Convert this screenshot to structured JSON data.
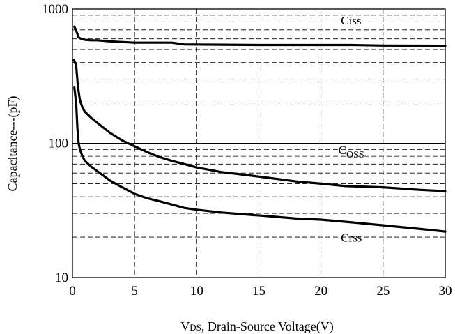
{
  "chart_data": {
    "type": "line",
    "title": "",
    "xlabel": {
      "prefix": "V",
      "subscript": "DS",
      "rest": ", Drain-Source Voltage(V)"
    },
    "ylabel": "Capacitance---(pF)",
    "xlim": [
      0,
      30
    ],
    "ylim": [
      10,
      1000
    ],
    "yscale": "log",
    "x_ticks": [
      0,
      5,
      10,
      15,
      20,
      25,
      30
    ],
    "x_tick_labels": [
      "0",
      "5",
      "10",
      "15",
      "20",
      "25",
      "30"
    ],
    "y_ticks": [
      10,
      100,
      1000
    ],
    "y_tick_labels": [
      "10",
      "100",
      "1000"
    ],
    "grid": true,
    "series": [
      {
        "name": "Ciss",
        "label_main": "C",
        "label_sub": "iss",
        "label_style": "inline",
        "label_at": [
          21.6,
          770
        ],
        "x": [
          0.15,
          0.3,
          0.5,
          0.7,
          1,
          1.5,
          2,
          3,
          5,
          8,
          9,
          12,
          15,
          20,
          22.5,
          25,
          30
        ],
        "y": [
          740,
          690,
          615,
          600,
          590,
          585,
          585,
          575,
          562,
          562,
          545,
          543,
          540,
          540,
          540,
          535,
          533
        ]
      },
      {
        "name": "Coss",
        "label_main": "C",
        "label_sub": "OSS",
        "label_style": "subscript",
        "label_at": [
          21.4,
          83
        ],
        "x": [
          0.1,
          0.3,
          0.45,
          0.6,
          0.8,
          1,
          1.5,
          2,
          3,
          4,
          5,
          6,
          7,
          8,
          9,
          10,
          12,
          14,
          16,
          18,
          20,
          22,
          25,
          28,
          30
        ],
        "y": [
          420,
          380,
          260,
          210,
          185,
          172,
          155,
          142,
          120,
          105,
          95,
          86,
          79,
          74,
          70,
          66,
          61,
          58,
          55,
          52,
          50,
          48,
          47,
          45,
          44
        ]
      },
      {
        "name": "Crss",
        "label_main": "C",
        "label_sub": "rss",
        "label_style": "inline",
        "label_at": [
          21.6,
          18.5
        ],
        "x": [
          0.15,
          0.3,
          0.4,
          0.5,
          0.6,
          0.8,
          1,
          1.5,
          2,
          3,
          4,
          5,
          6,
          7,
          8,
          9,
          10,
          12,
          14,
          16,
          18,
          20,
          22,
          25,
          28,
          30
        ],
        "y": [
          260,
          200,
          130,
          100,
          90,
          80,
          74,
          67,
          62,
          53,
          47,
          42,
          39,
          37,
          35,
          33,
          32,
          30.5,
          29.5,
          28.5,
          27.5,
          27,
          26,
          24.5,
          23,
          22
        ]
      }
    ]
  }
}
